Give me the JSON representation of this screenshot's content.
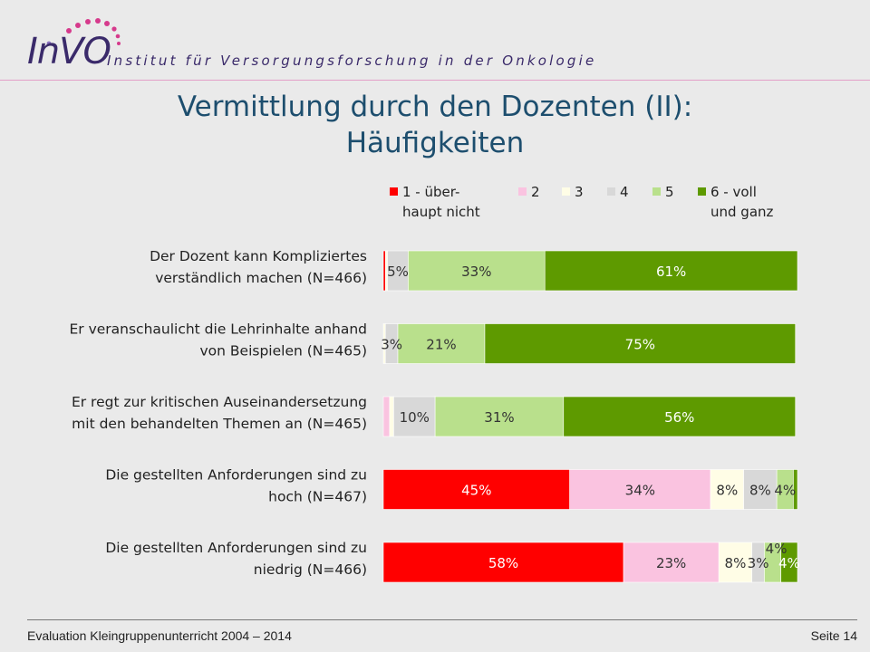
{
  "header": {
    "logo_text": "InVO",
    "tagline": "Institut für Versorgungsforschung in der Onkologie"
  },
  "slide": {
    "title_line1": "Vermittlung durch den Dozenten (II):",
    "title_line2": "Häufigkeiten"
  },
  "chart_data": {
    "type": "bar",
    "orientation": "horizontal",
    "stacked": true,
    "xlim": [
      0,
      100
    ],
    "legend_position": "top",
    "grid": false,
    "categories": [
      "Der Dozent kann Kompliziertes verständlich machen (N=466)",
      "Er veranschaulicht die Lehrinhalte anhand von Beispielen (N=465)",
      "Er regt zur kritischen Auseinandersetzung mit den behandelten Themen an (N=465)",
      "Die gestellten Anforderungen sind zu hoch (N=467)",
      "Die gestellten Anforderungen sind zu niedrig (N=466)"
    ],
    "category_lines": [
      [
        "Der Dozent kann Kompliziertes",
        "verständlich machen (N=466)"
      ],
      [
        "Er veranschaulicht die Lehrinhalte anhand",
        "von Beispielen (N=465)"
      ],
      [
        "Er regt zur kritischen Auseinandersetzung",
        "mit den behandelten Themen an (N=465)"
      ],
      [
        "Die gestellten Anforderungen sind zu",
        "hoch (N=467)"
      ],
      [
        "Die gestellten Anforderungen sind zu",
        "niedrig (N=466)"
      ]
    ],
    "series": [
      {
        "name": "1 - über-haupt nicht",
        "legend_lines": [
          "1 - über-",
          "haupt nicht"
        ],
        "color": "#ff0000",
        "text_color": "#ffffff",
        "values": [
          0.5,
          0,
          0,
          45,
          58
        ],
        "labels": [
          "",
          "",
          "",
          "45%",
          "58%"
        ]
      },
      {
        "name": "2",
        "legend_lines": [
          "2"
        ],
        "color": "#fac3e0",
        "text_color": "#333333",
        "values": [
          0,
          0,
          1.5,
          34,
          23
        ],
        "labels": [
          "",
          "",
          "",
          "34%",
          "23%"
        ]
      },
      {
        "name": "3",
        "legend_lines": [
          "3"
        ],
        "color": "#fffde6",
        "text_color": "#333333",
        "values": [
          0.5,
          0.5,
          1,
          8,
          8
        ],
        "labels": [
          "",
          "",
          "",
          "8%",
          "8%"
        ]
      },
      {
        "name": "4",
        "legend_lines": [
          "4"
        ],
        "color": "#d8d8d8",
        "text_color": "#333333",
        "values": [
          5,
          3,
          10,
          8,
          3
        ],
        "labels": [
          "5%",
          "3%",
          "10%",
          "8%",
          "3%"
        ]
      },
      {
        "name": "5",
        "legend_lines": [
          "5"
        ],
        "color": "#b9e08c",
        "text_color": "#333333",
        "values": [
          33,
          21,
          31,
          4,
          4
        ],
        "labels": [
          "33%",
          "21%",
          "31%",
          "4%",
          "4%"
        ]
      },
      {
        "name": "6 - voll und ganz",
        "legend_lines": [
          "6 - voll",
          "und ganz"
        ],
        "color": "#5e9a00",
        "text_color": "#ffffff",
        "values": [
          61,
          75,
          56,
          1,
          4
        ],
        "labels": [
          "61%",
          "75%",
          "56%",
          "",
          "4%"
        ]
      }
    ]
  },
  "footer": {
    "left": "Evaluation Kleingruppenunterricht 2004 – 2014",
    "right": "Seite 14"
  }
}
